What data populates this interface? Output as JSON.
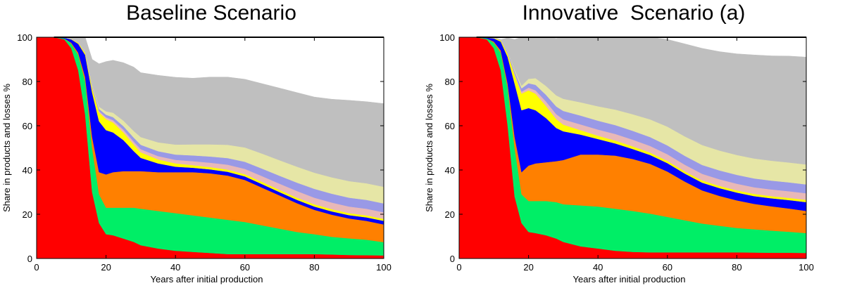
{
  "chart_data": [
    {
      "type": "area",
      "title": "Baseline Scenario",
      "xlabel": "Years after initial production",
      "ylabel": "Share in products and losses %",
      "xlim": [
        0,
        100
      ],
      "ylim": [
        0,
        100
      ],
      "xticks": [
        "0",
        "20",
        "40",
        "60",
        "80",
        "100"
      ],
      "yticks": [
        "0",
        "20",
        "40",
        "60",
        "80",
        "100"
      ],
      "grid": false,
      "stacked": true,
      "x": [
        0,
        5,
        8,
        10,
        12,
        14,
        16,
        18,
        20,
        22,
        25,
        28,
        30,
        35,
        40,
        45,
        50,
        55,
        60,
        65,
        70,
        75,
        80,
        85,
        90,
        95,
        100
      ],
      "series": [
        {
          "color": "#ff0000",
          "values": [
            100,
            100,
            99,
            95,
            85,
            65,
            30,
            16,
            11,
            10.5,
            9,
            7.5,
            6,
            4.5,
            3.5,
            3,
            2.5,
            2,
            2,
            2,
            2,
            2,
            2,
            1.8,
            1.6,
            1.5,
            1.4
          ]
        },
        {
          "color": "#00ee66",
          "values": [
            0,
            0,
            0.5,
            2,
            7,
            15,
            20,
            13,
            12,
            12.5,
            14,
            15.5,
            16.5,
            17,
            17,
            16.5,
            16,
            15.5,
            14.5,
            13,
            11.5,
            10,
            9,
            8,
            7.5,
            7,
            6
          ]
        },
        {
          "color": "#ff8000",
          "values": [
            0,
            0,
            0,
            0.5,
            1,
            2,
            5,
            10,
            15,
            16,
            16.5,
            16.5,
            17,
            17.5,
            18.5,
            19.5,
            20,
            20,
            19,
            17,
            15,
            13,
            11,
            10,
            9,
            8.5,
            8
          ]
        },
        {
          "color": "#0000ff",
          "values": [
            0,
            0,
            0.3,
            1.5,
            4,
            10,
            20,
            23,
            20,
            18,
            14,
            9,
            6,
            4,
            2.5,
            2,
            1.8,
            1.7,
            1.6,
            1.6,
            1.5,
            1.5,
            1.5,
            1.5,
            1.5,
            1.6,
            1.6
          ]
        },
        {
          "color": "#ffff00",
          "values": [
            0,
            0,
            0,
            0.2,
            0.5,
            1,
            2,
            4,
            5,
            4.5,
            3.5,
            3,
            2.5,
            1.8,
            1.5,
            1.2,
            1,
            1,
            1,
            1,
            1,
            1,
            1,
            1,
            0.9,
            0.9,
            0.9
          ]
        },
        {
          "color": "#e8b8b8",
          "values": [
            0,
            0,
            0,
            0,
            0.1,
            0.2,
            0.4,
            0.6,
            0.8,
            1,
            1.2,
            1.3,
            1.4,
            1.5,
            1.6,
            1.8,
            2,
            2.2,
            2.4,
            2.6,
            2.8,
            3,
            3,
            3,
            3,
            3,
            3
          ]
        },
        {
          "color": "#9999e6",
          "values": [
            0,
            0,
            0,
            0,
            0.2,
            0.4,
            0.7,
            1,
            1.2,
            1.4,
            1.6,
            1.8,
            2,
            2.2,
            2.4,
            2.6,
            2.8,
            3,
            3.2,
            3.4,
            3.6,
            3.8,
            4,
            4,
            4,
            4,
            4
          ]
        },
        {
          "color": "#e6e6a6",
          "values": [
            0,
            0,
            0,
            0,
            0.1,
            0.3,
            0.6,
            1,
            1.5,
            2,
            2.5,
            3,
            3.5,
            4,
            4.5,
            5,
            5.5,
            6,
            6.5,
            6.8,
            7,
            7.2,
            7.3,
            7.4,
            7.5,
            7.5,
            7.5
          ]
        },
        {
          "color": "#bfbfbf",
          "values": [
            0,
            0,
            0.2,
            0.8,
            2.2,
            6.1,
            11.3,
            19.4,
            22.5,
            23.7,
            26.2,
            28.9,
            29.1,
            30.3,
            30.4,
            29.9,
            30.4,
            30.6,
            30.8,
            31.6,
            32.6,
            33.5,
            34.2,
            35.3,
            36.5,
            36.9,
            37.6
          ]
        }
      ]
    },
    {
      "type": "area",
      "title": "Innovative  Scenario (a)",
      "xlabel": "Years after initial production",
      "ylabel": "Share in products and losses %",
      "xlim": [
        0,
        100
      ],
      "ylim": [
        0,
        100
      ],
      "xticks": [
        "0",
        "20",
        "40",
        "60",
        "80",
        "100"
      ],
      "yticks": [
        "0",
        "20",
        "40",
        "60",
        "80",
        "100"
      ],
      "grid": false,
      "stacked": true,
      "x": [
        0,
        5,
        8,
        10,
        12,
        14,
        16,
        18,
        20,
        22,
        25,
        28,
        30,
        35,
        40,
        45,
        50,
        55,
        60,
        65,
        70,
        75,
        80,
        85,
        90,
        95,
        100
      ],
      "series": [
        {
          "color": "#ff0000",
          "values": [
            100,
            100,
            99,
            95,
            85,
            60,
            28,
            16,
            12,
            11.5,
            10.5,
            9,
            7.5,
            5.5,
            4.5,
            3.5,
            3,
            2.8,
            2.8,
            2.8,
            2.8,
            2.8,
            2.8,
            2.7,
            2.6,
            2.6,
            2.5
          ]
        },
        {
          "color": "#00ee66",
          "values": [
            0,
            0,
            0.5,
            2.5,
            8,
            17,
            22,
            13,
            14,
            14.5,
            15.5,
            16.5,
            17,
            18.5,
            19,
            19,
            18.5,
            17.5,
            16,
            14.5,
            13,
            12,
            11,
            10.5,
            10,
            9.5,
            9
          ]
        },
        {
          "color": "#ff8000",
          "values": [
            0,
            0,
            0,
            0.5,
            1,
            2,
            5,
            10,
            16,
            17,
            17.5,
            18.5,
            20,
            23,
            23.5,
            24,
            23.5,
            22.5,
            20.5,
            17.5,
            15,
            13.5,
            12.5,
            11.5,
            11,
            10.5,
            10
          ]
        },
        {
          "color": "#0000ff",
          "values": [
            0,
            0,
            0.3,
            1.5,
            4,
            12,
            24,
            28,
            26,
            24,
            20,
            15,
            13,
            9,
            7,
            5.5,
            4.5,
            4,
            3.8,
            3.6,
            3.5,
            3.5,
            3.5,
            3.5,
            3.6,
            3.8,
            4
          ]
        },
        {
          "color": "#ffff00",
          "values": [
            0,
            0,
            0,
            0.2,
            0.6,
            1.5,
            4,
            7.5,
            8,
            7.5,
            5.5,
            4,
            3,
            2,
            1.5,
            1.3,
            1.2,
            1.1,
            1,
            1,
            1,
            1,
            1,
            1,
            1,
            1,
            1
          ]
        },
        {
          "color": "#e8b8b8",
          "values": [
            0,
            0,
            0,
            0,
            0.1,
            0.3,
            0.6,
            0.9,
            1.2,
            1.5,
            2,
            2.2,
            2.4,
            2.6,
            2.8,
            3,
            3,
            3,
            3,
            3,
            3,
            3,
            3,
            3,
            3,
            3,
            3
          ]
        },
        {
          "color": "#9999e6",
          "values": [
            0,
            0,
            0,
            0,
            0.2,
            0.5,
            1,
            1.5,
            2,
            2.5,
            3,
            3.5,
            3.8,
            4,
            4,
            4,
            4,
            4,
            4,
            4,
            4,
            4,
            4,
            4,
            4,
            4,
            4
          ]
        },
        {
          "color": "#e6e6a6",
          "values": [
            0,
            0,
            0,
            0,
            0.1,
            0.3,
            0.7,
            1.2,
            2,
            3,
            4,
            5,
            5.5,
            6,
            6.5,
            7,
            7.5,
            8,
            8.5,
            8.8,
            9,
            9,
            9,
            9,
            9,
            9,
            9
          ]
        },
        {
          "color": "#bfbfbf",
          "values": [
            0,
            0,
            0.2,
            0.3,
            0.0,
            6.1,
            13.7,
            21.9,
            18.8,
            18.5,
            22,
            25.8,
            27.8,
            30.4,
            31.2,
            32.7,
            34.8,
            37.1,
            39.4,
            41.8,
            43.7,
            44.7,
            45.7,
            46.8,
            47.4,
            48.1,
            48.5
          ]
        }
      ]
    }
  ]
}
